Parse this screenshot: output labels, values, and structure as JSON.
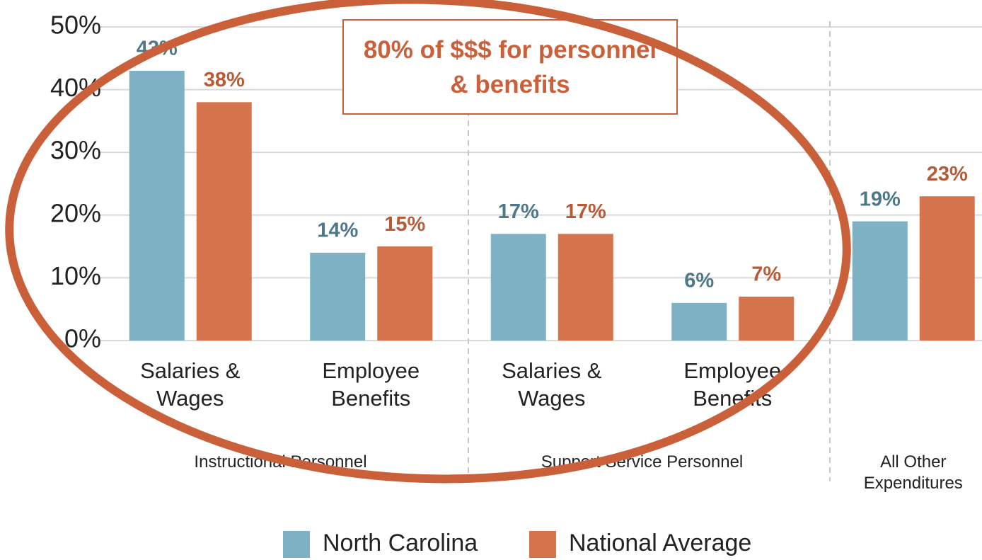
{
  "chart_data": {
    "type": "bar",
    "categories": [
      "Salaries & Wages",
      "Employee Benefits",
      "Salaries & Wages",
      "Employee Benefits",
      null
    ],
    "groups": [
      {
        "name": "Instructional Personnel",
        "size": 2
      },
      {
        "name": "Support Service Personnel",
        "size": 2
      },
      {
        "name": "All Other Expenditures",
        "size": 1
      }
    ],
    "series": [
      {
        "name": "North Carolina",
        "color": "#7fb1c4",
        "label_color": "#4d7889",
        "values": [
          43,
          14,
          17,
          6,
          19
        ],
        "value_labels": [
          "43%",
          "14%",
          "17%",
          "6%",
          "19%"
        ]
      },
      {
        "name": "National Average",
        "color": "#d4734c",
        "label_color": "#b85a36",
        "values": [
          38,
          15,
          17,
          7,
          23
        ],
        "value_labels": [
          "38%",
          "15%",
          "17%",
          "7%",
          "23%"
        ]
      }
    ],
    "ylim": [
      0,
      50
    ],
    "yticks": [
      {
        "value": 0,
        "label": "0%"
      },
      {
        "value": 10,
        "label": "10%"
      },
      {
        "value": 20,
        "label": "20%"
      },
      {
        "value": 30,
        "label": "30%"
      },
      {
        "value": 40,
        "label": "40%"
      },
      {
        "value": 50,
        "label": "50%"
      }
    ],
    "grid": true,
    "annotation": "80% of $$$ for personnel & benefits"
  }
}
